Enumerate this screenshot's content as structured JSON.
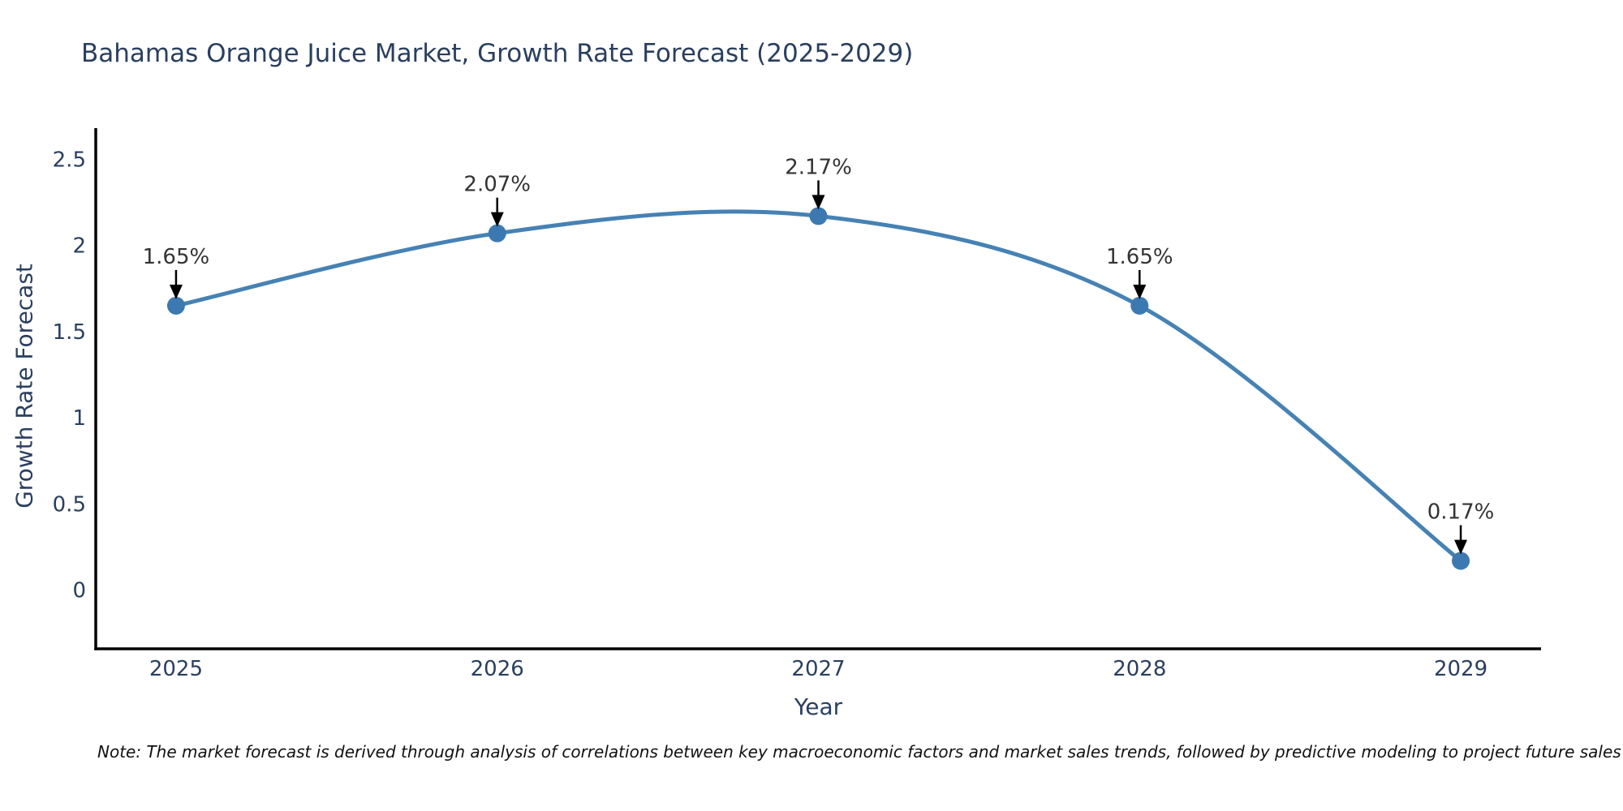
{
  "title": "Bahamas Orange Juice Market, Growth Rate Forecast (2025-2029)",
  "note": "Note: The market forecast is derived through analysis of correlations between key macroeconomic factors and market sales trends, followed by predictive modeling to project future sales",
  "chart_data": {
    "type": "line",
    "title": "Bahamas Orange Juice Market, Growth Rate Forecast (2025-2029)",
    "xlabel": "Year",
    "ylabel": "Growth Rate Forecast",
    "x": [
      2025,
      2026,
      2027,
      2028,
      2029
    ],
    "series": [
      {
        "name": "Growth Rate Forecast",
        "values": [
          1.65,
          2.07,
          2.17,
          1.65,
          0.17
        ],
        "point_labels": [
          "1.65%",
          "2.07%",
          "2.17%",
          "1.65%",
          "0.17%"
        ]
      }
    ],
    "xtick_labels": [
      "2025",
      "2026",
      "2027",
      "2028",
      "2029"
    ],
    "ytick_values": [
      0,
      0.5,
      1,
      1.5,
      2,
      2.5
    ],
    "ytick_labels": [
      "0",
      "0.5",
      "1",
      "1.5",
      "2",
      "2.5"
    ],
    "ylim": [
      -0.34,
      2.68
    ],
    "xlim": [
      2024.75,
      2029.25
    ],
    "grid": false,
    "legend": "none",
    "line_shape": "spline",
    "colors": {
      "line": "#4682b4",
      "marker": "#3d79b1",
      "axis": "#000000",
      "tick_text": "#2a3f5f",
      "title_text": "#2a3f5f",
      "annotation_text": "#333333",
      "arrow": "#000000",
      "background": "#ffffff"
    }
  }
}
